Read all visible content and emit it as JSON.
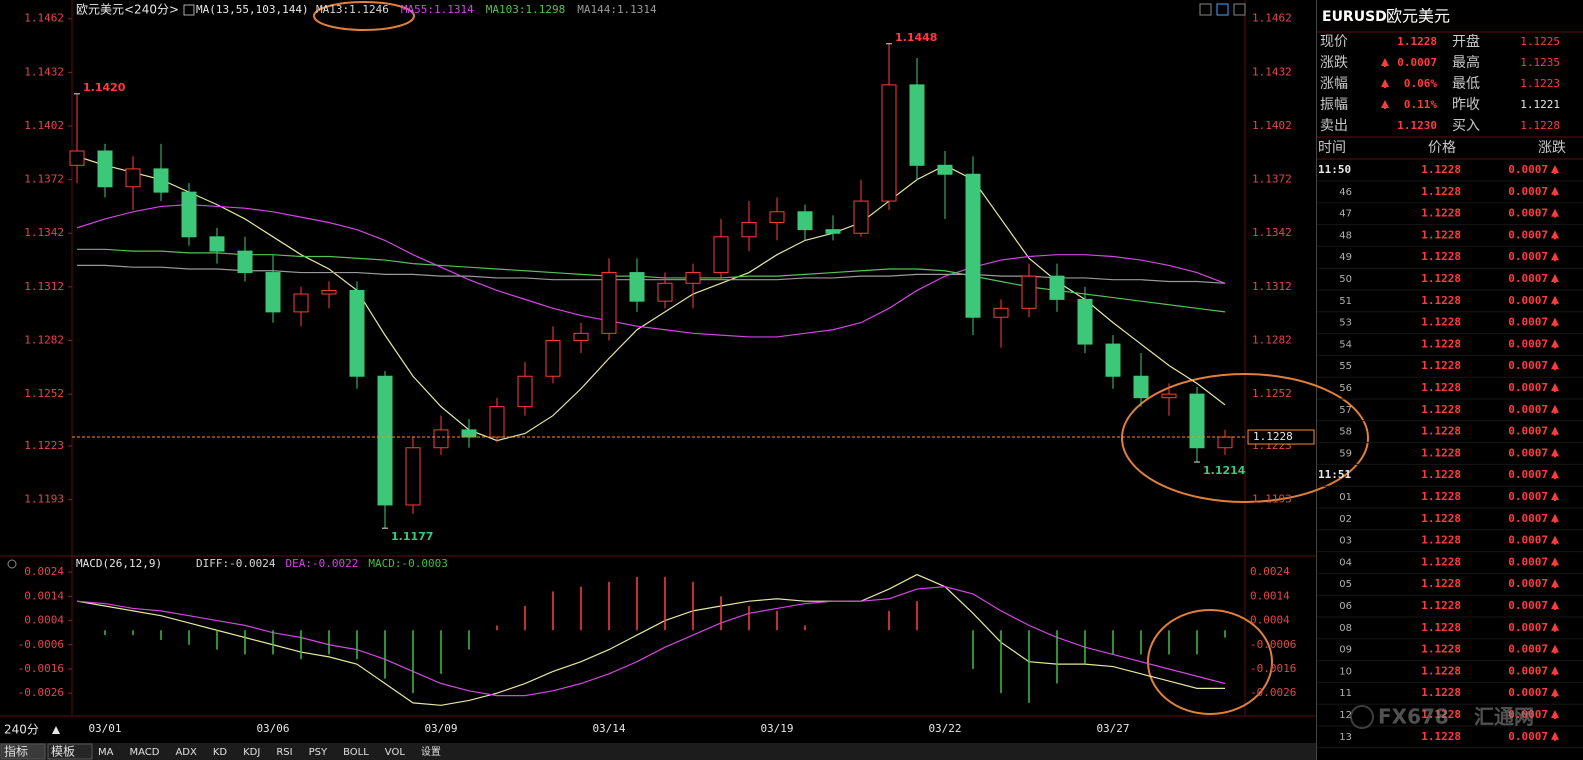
{
  "chart_data": [
    {
      "type": "candlestick",
      "title": "欧元美元<240分>",
      "subtitle": "MA(13,55,103,144)",
      "categories": [
        null,
        "03/01",
        null,
        null,
        null,
        null,
        null,
        "03/06",
        null,
        null,
        null,
        null,
        null,
        "03/09",
        null,
        null,
        null,
        null,
        null,
        "03/14",
        null,
        null,
        null,
        null,
        null,
        "03/19",
        null,
        null,
        null,
        null,
        null,
        "03/22",
        null,
        null,
        null,
        null,
        null,
        "03/27",
        null,
        null,
        null,
        null
      ],
      "open": [
        1.138,
        1.1388,
        1.1368,
        1.1378,
        1.1365,
        1.134,
        1.1332,
        1.132,
        1.1298,
        1.1308,
        1.131,
        1.1262,
        1.119,
        1.1222,
        1.1232,
        1.1228,
        1.1245,
        1.1262,
        1.1282,
        1.1286,
        1.132,
        1.1304,
        1.1314,
        1.132,
        1.134,
        1.1348,
        1.1354,
        1.1344,
        1.1342,
        1.136,
        1.1425,
        1.138,
        1.1375,
        1.1295,
        1.13,
        1.1318,
        1.1305,
        1.128,
        1.1262,
        1.125,
        1.1252,
        1.1222
      ],
      "high": [
        1.142,
        1.1392,
        1.1385,
        1.1392,
        1.137,
        1.1345,
        1.134,
        1.133,
        1.1312,
        1.1315,
        1.1315,
        1.1265,
        1.1228,
        1.124,
        1.1238,
        1.125,
        1.127,
        1.129,
        1.1292,
        1.1328,
        1.1328,
        1.132,
        1.1325,
        1.135,
        1.136,
        1.1362,
        1.1358,
        1.1352,
        1.1372,
        1.1448,
        1.144,
        1.1388,
        1.1385,
        1.1305,
        1.1325,
        1.1325,
        1.1312,
        1.1285,
        1.1275,
        1.1258,
        1.1256,
        1.1232
      ],
      "low": [
        1.137,
        1.1362,
        1.1355,
        1.136,
        1.1335,
        1.1325,
        1.1315,
        1.1292,
        1.129,
        1.13,
        1.1255,
        1.1177,
        1.1185,
        1.1218,
        1.1222,
        1.1225,
        1.124,
        1.1258,
        1.1275,
        1.1282,
        1.1298,
        1.13,
        1.13,
        1.1316,
        1.1332,
        1.1338,
        1.1338,
        1.1338,
        1.134,
        1.1355,
        1.1372,
        1.135,
        1.1285,
        1.1278,
        1.1295,
        1.1298,
        1.1275,
        1.1255,
        1.1245,
        1.124,
        1.1214,
        1.1218
      ],
      "close": [
        1.1388,
        1.1368,
        1.1378,
        1.1365,
        1.134,
        1.1332,
        1.132,
        1.1298,
        1.1308,
        1.131,
        1.1262,
        1.119,
        1.1222,
        1.1232,
        1.1228,
        1.1245,
        1.1262,
        1.1282,
        1.1286,
        1.132,
        1.1304,
        1.1314,
        1.132,
        1.134,
        1.1348,
        1.1354,
        1.1344,
        1.1342,
        1.136,
        1.1425,
        1.138,
        1.1375,
        1.1295,
        1.13,
        1.1318,
        1.1305,
        1.128,
        1.1262,
        1.125,
        1.1252,
        1.1222,
        1.1228
      ],
      "up_color": "#ff3b3b",
      "down_color": "#3cc878",
      "series": [
        {
          "name": "MA13:1.1246",
          "color": "#e6e6a0",
          "label_color": "#d8d8d8",
          "values": [
            1.1385,
            1.138,
            1.1376,
            1.1372,
            1.1365,
            1.1358,
            1.135,
            1.134,
            1.133,
            1.1322,
            1.131,
            1.1285,
            1.1262,
            1.1245,
            1.1232,
            1.1226,
            1.123,
            1.124,
            1.1255,
            1.1272,
            1.1288,
            1.1298,
            1.1308,
            1.1314,
            1.132,
            1.133,
            1.1338,
            1.1342,
            1.1348,
            1.136,
            1.1372,
            1.138,
            1.1372,
            1.135,
            1.1328,
            1.1315,
            1.1305,
            1.1292,
            1.128,
            1.1268,
            1.1258,
            1.1246
          ]
        },
        {
          "name": "MA55:1.1314",
          "color": "#d048e0",
          "label_color": "#d048e0",
          "values": [
            1.1345,
            1.135,
            1.1354,
            1.1357,
            1.1358,
            1.1357,
            1.1356,
            1.1354,
            1.1351,
            1.1348,
            1.1344,
            1.1338,
            1.133,
            1.1323,
            1.1316,
            1.131,
            1.1305,
            1.13,
            1.1296,
            1.1293,
            1.129,
            1.1288,
            1.1286,
            1.1285,
            1.1284,
            1.1284,
            1.1286,
            1.1288,
            1.1292,
            1.13,
            1.131,
            1.1318,
            1.1323,
            1.1327,
            1.1329,
            1.133,
            1.133,
            1.1329,
            1.1327,
            1.1324,
            1.132,
            1.1314
          ]
        },
        {
          "name": "MA103:1.1298",
          "color": "#58c058",
          "label_color": "#58c058",
          "values": [
            1.1333,
            1.1333,
            1.1332,
            1.1332,
            1.1331,
            1.1331,
            1.133,
            1.133,
            1.1329,
            1.1329,
            1.1328,
            1.1327,
            1.1325,
            1.1324,
            1.1323,
            1.1322,
            1.1321,
            1.132,
            1.1319,
            1.1318,
            1.1318,
            1.1317,
            1.1317,
            1.1317,
            1.1318,
            1.1318,
            1.1319,
            1.132,
            1.1321,
            1.1322,
            1.1322,
            1.1321,
            1.1318,
            1.1315,
            1.1312,
            1.131,
            1.1308,
            1.1306,
            1.1304,
            1.1302,
            1.13,
            1.1298
          ]
        },
        {
          "name": "MA144:1.1314",
          "color": "#9a9a9a",
          "label_color": "#9a9a9a",
          "values": [
            1.1324,
            1.1324,
            1.1323,
            1.1323,
            1.1322,
            1.1322,
            1.1321,
            1.1321,
            1.132,
            1.132,
            1.132,
            1.1319,
            1.1319,
            1.1318,
            1.1318,
            1.1317,
            1.1317,
            1.1316,
            1.1316,
            1.1316,
            1.1316,
            1.1316,
            1.1316,
            1.1316,
            1.1316,
            1.1316,
            1.1317,
            1.1317,
            1.1318,
            1.1318,
            1.1319,
            1.1319,
            1.1319,
            1.1318,
            1.1318,
            1.1317,
            1.1317,
            1.1316,
            1.1316,
            1.1315,
            1.1315,
            1.1314
          ]
        }
      ],
      "ylim": [
        1.1162,
        1.1468
      ],
      "yticks": [
        1.1462,
        1.1432,
        1.1402,
        1.1372,
        1.1342,
        1.1312,
        1.1282,
        1.1252,
        1.1223,
        1.1193
      ],
      "annotations": [
        {
          "index": 0,
          "value": 1.142,
          "label": "1.1420",
          "color": "#ff3b3b"
        },
        {
          "index": 29,
          "value": 1.1448,
          "color": "#ff3b3b"
        },
        {
          "index": 11,
          "value": 1.1177,
          "color": "#3cc878"
        },
        {
          "index": 40,
          "value": 1.1214,
          "color": "#3cc878"
        }
      ],
      "last_price": 1.1228,
      "last_price_color": "#ff8c1a"
    },
    {
      "type": "macd",
      "title": "MACD(26,12,9)",
      "series": [
        {
          "name": "DIFF:-0.0024",
          "color": "#e6e6a0",
          "label_color": "#d8d8d8",
          "values": [
            0.0012,
            0.001,
            0.0008,
            0.0006,
            0.0003,
            0.0,
            -0.0003,
            -0.0006,
            -0.0009,
            -0.0011,
            -0.0014,
            -0.0022,
            -0.003,
            -0.0031,
            -0.0029,
            -0.0026,
            -0.0022,
            -0.0017,
            -0.0013,
            -0.0008,
            -0.0002,
            0.0004,
            0.0008,
            0.001,
            0.0012,
            0.0013,
            0.0012,
            0.0012,
            0.0012,
            0.0017,
            0.0023,
            0.0018,
            0.0007,
            -0.0005,
            -0.0013,
            -0.0014,
            -0.0014,
            -0.0015,
            -0.0018,
            -0.0021,
            -0.0024,
            -0.0024
          ]
        },
        {
          "name": "DEA:-0.0022",
          "color": "#d048e0",
          "label_color": "#d048e0",
          "values": [
            0.0012,
            0.0011,
            0.0009,
            0.0008,
            0.0006,
            0.0004,
            0.0002,
            -0.0001,
            -0.0003,
            -0.0006,
            -0.0008,
            -0.0012,
            -0.0017,
            -0.0022,
            -0.0025,
            -0.0027,
            -0.0027,
            -0.0025,
            -0.0022,
            -0.0018,
            -0.0013,
            -0.0007,
            -0.0002,
            0.0003,
            0.0007,
            0.0009,
            0.0011,
            0.0012,
            0.0012,
            0.0013,
            0.0017,
            0.0018,
            0.0015,
            0.0008,
            0.0002,
            -0.0003,
            -0.0007,
            -0.001,
            -0.0013,
            -0.0016,
            -0.0019,
            -0.0022
          ]
        },
        {
          "name": "MACD:-0.0003",
          "type": "bar",
          "up_color": "#ff4040",
          "down_color": "#40c040",
          "label_color": "#40c040",
          "values": [
            0.0,
            -0.0002,
            -0.0002,
            -0.0004,
            -0.0006,
            -0.0008,
            -0.001,
            -0.001,
            -0.0012,
            -0.001,
            -0.0012,
            -0.002,
            -0.0026,
            -0.0018,
            -0.0008,
            0.0002,
            0.001,
            0.0016,
            0.0018,
            0.002,
            0.0022,
            0.0022,
            0.002,
            0.0014,
            0.001,
            0.0008,
            0.0002,
            0.0,
            0.0,
            0.0008,
            0.0012,
            0.0,
            -0.0016,
            -0.0026,
            -0.003,
            -0.0022,
            -0.0014,
            -0.001,
            -0.001,
            -0.001,
            -0.001,
            -0.0003
          ]
        }
      ],
      "ylim": [
        -0.0035,
        0.0029
      ],
      "yticks": [
        0.0024,
        0.0014,
        0.0004,
        -0.0006,
        -0.0016,
        -0.0026
      ]
    }
  ],
  "period": "240分",
  "tabs": [
    "指标",
    "模板",
    "MA",
    "MACD",
    "ADX",
    "KD",
    "KDJ",
    "RSI",
    "PSY",
    "BOLL",
    "VOL",
    "设置"
  ],
  "quote": {
    "symbol": "EURUSD",
    "name": "欧元美元",
    "rows": [
      [
        "现价",
        "1.1228",
        "开盘",
        "1.1225"
      ],
      [
        "涨跌",
        "0.0007",
        "最高",
        "1.1235"
      ],
      [
        "涨幅",
        "0.06%",
        "最低",
        "1.1223"
      ],
      [
        "振幅",
        "0.11%",
        "昨收",
        "1.1221"
      ],
      [
        "卖出",
        "1.1230",
        "买入",
        "1.1228"
      ]
    ]
  },
  "ticks_table": {
    "columns": [
      "时间",
      "价格",
      "涨跌"
    ],
    "rows": [
      [
        "11:50",
        "1.1228",
        "0.0007"
      ],
      [
        "46",
        "1.1228",
        "0.0007"
      ],
      [
        "47",
        "1.1228",
        "0.0007"
      ],
      [
        "48",
        "1.1228",
        "0.0007"
      ],
      [
        "49",
        "1.1228",
        "0.0007"
      ],
      [
        "50",
        "1.1228",
        "0.0007"
      ],
      [
        "51",
        "1.1228",
        "0.0007"
      ],
      [
        "53",
        "1.1228",
        "0.0007"
      ],
      [
        "54",
        "1.1228",
        "0.0007"
      ],
      [
        "55",
        "1.1228",
        "0.0007"
      ],
      [
        "56",
        "1.1228",
        "0.0007"
      ],
      [
        "57",
        "1.1228",
        "0.0007"
      ],
      [
        "58",
        "1.1228",
        "0.0007"
      ],
      [
        "59",
        "1.1228",
        "0.0007"
      ],
      [
        "11:51",
        "1.1228",
        "0.0007"
      ],
      [
        "01",
        "1.1228",
        "0.0007"
      ],
      [
        "02",
        "1.1228",
        "0.0007"
      ],
      [
        "03",
        "1.1228",
        "0.0007"
      ],
      [
        "04",
        "1.1228",
        "0.0007"
      ],
      [
        "05",
        "1.1228",
        "0.0007"
      ],
      [
        "06",
        "1.1228",
        "0.0007"
      ],
      [
        "08",
        "1.1228",
        "0.0007"
      ],
      [
        "09",
        "1.1228",
        "0.0007"
      ],
      [
        "10",
        "1.1228",
        "0.0007"
      ],
      [
        "11",
        "1.1228",
        "0.0007"
      ],
      [
        "12",
        "1.1228",
        "0.0007"
      ],
      [
        "13",
        "1.1228",
        "0.0007"
      ]
    ]
  },
  "watermark": [
    "FX678",
    "汇通网"
  ]
}
